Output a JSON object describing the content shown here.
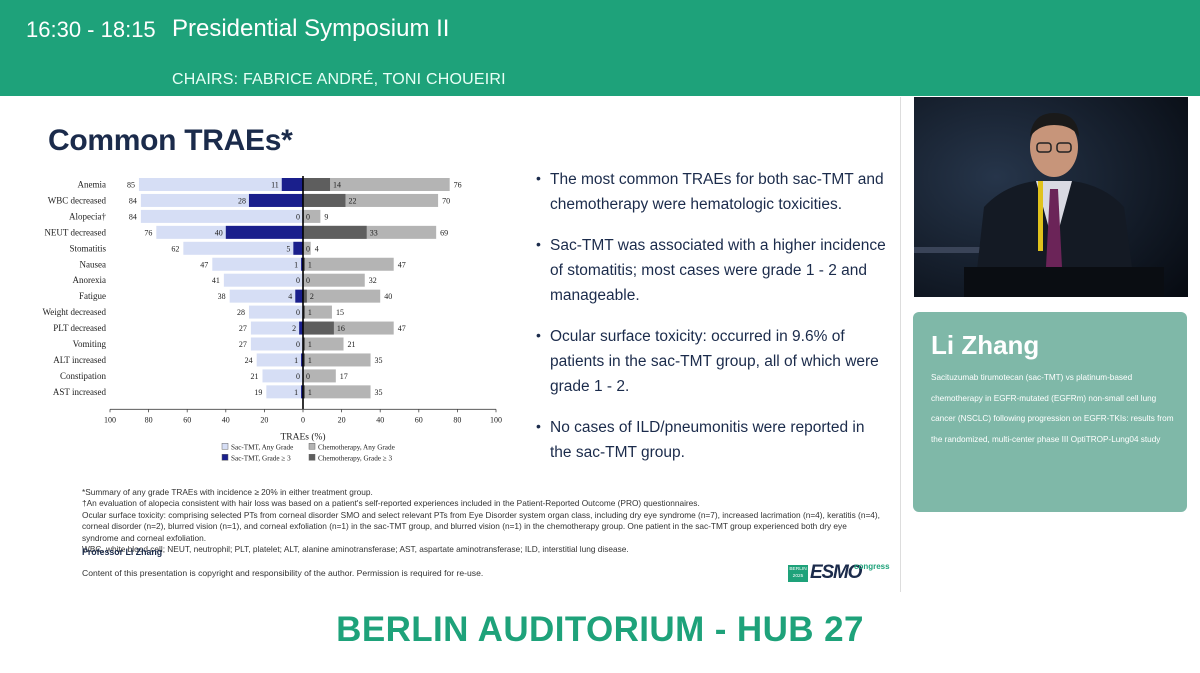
{
  "header": {
    "time": "16:30 - 18:15",
    "session": "Presidential Symposium II",
    "chairs": "CHAIRS: FABRICE ANDRÉ, TONI CHOUEIRI"
  },
  "slide": {
    "title": "Common TRAEs*",
    "bullets": [
      "The most common TRAEs for both sac-TMT and chemotherapy were hematologic toxicities.",
      "Sac-TMT was associated with a higher incidence of stomatitis; most cases were grade 1 - 2 and manageable.",
      "Ocular surface toxicity: occurred in 9.6% of patients in the sac-TMT group, all of which were grade 1 - 2.",
      "No cases of ILD/pneumonitis were reported in the sac-TMT group."
    ],
    "footnotes": [
      "*Summary of any grade TRAEs with incidence ≥ 20% in either treatment group.",
      "†An evaluation of alopecia consistent with hair loss was based on a patient's self-reported experiences included in the Patient-Reported Outcome (PRO) questionnaires.",
      "Ocular surface toxicity: comprising selected PTs from corneal disorder SMO and select relevant PTs from Eye Disorder system organ class, including dry eye syndrome (n=7), increased lacrimation (n=4), keratitis (n=4), corneal disorder (n=2), blurred vision (n=1), and corneal exfoliation (n=1) in the sac-TMT group, and blurred vision (n=1) in the chemotherapy group. One patient in the sac-TMT group experienced both dry eye syndrome and corneal exfoliation.",
      "WBC, white blood cell; NEUT, neutrophil; PLT, platelet; ALT, alanine aminotransferase; AST, aspartate aminotransferase; ILD, interstitial lung disease."
    ],
    "presenter": "Professor Li Zhang",
    "copyright": "Content of this presentation is copyright and responsibility of the author. Permission is required for re-use.",
    "logo": {
      "city": "BERLIN",
      "year": "2025",
      "brand": "ESMO",
      "suffix": "congress"
    }
  },
  "chart_data": {
    "type": "bar",
    "orientation": "horizontal-butterfly",
    "categories": [
      "Anemia",
      "WBC decreased",
      "Alopecia†",
      "NEUT decreased",
      "Stomatitis",
      "Nausea",
      "Anorexia",
      "Fatigue",
      "Weight decreased",
      "PLT decreased",
      "Vomiting",
      "ALT increased",
      "Constipation",
      "AST increased"
    ],
    "series": [
      {
        "name": "Sac-TMT, Any Grade",
        "side": "left",
        "color": "#d6def5",
        "values": [
          85,
          84,
          84,
          76,
          62,
          47,
          41,
          38,
          28,
          27,
          27,
          24,
          21,
          19
        ]
      },
      {
        "name": "Sac-TMT, Grade ≥ 3",
        "side": "left",
        "color": "#1a1f8c",
        "values": [
          11,
          28,
          0,
          40,
          5,
          1,
          0,
          4,
          0,
          2,
          0,
          1,
          0,
          1
        ]
      },
      {
        "name": "Chemotherapy, Any Grade",
        "side": "right",
        "color": "#b4b4b4",
        "values": [
          76,
          70,
          9,
          69,
          4,
          47,
          32,
          40,
          15,
          47,
          21,
          35,
          17,
          35
        ]
      },
      {
        "name": "Chemotherapy, Grade ≥ 3",
        "side": "right",
        "color": "#5e5e5e",
        "values": [
          14,
          22,
          0,
          33,
          0,
          1,
          0,
          2,
          1,
          16,
          1,
          1,
          0,
          1
        ]
      }
    ],
    "xlabel": "TRAEs (%)",
    "xlim": [
      -100,
      100
    ],
    "ticks": [
      "100",
      "80",
      "60",
      "40",
      "20",
      "0",
      "20",
      "40",
      "60",
      "80",
      "100"
    ],
    "legend_position": "bottom-center"
  },
  "speaker": {
    "name": "Li Zhang",
    "description": "Sacituzumab tirumotecan (sac-TMT) vs platinum-based chemotherapy in EGFR-mutated (EGFRm) non-small cell lung cancer (NSCLC) following progression on EGFR-TKIs: results from the randomized, multi-center phase III OptiTROP-Lung04 study"
  },
  "venue": "BERLIN AUDITORIUM - HUB 27",
  "colors": {
    "brand_green": "#1ea27a",
    "panel_green": "#7fb8a8",
    "navy": "#1b2b4b"
  }
}
